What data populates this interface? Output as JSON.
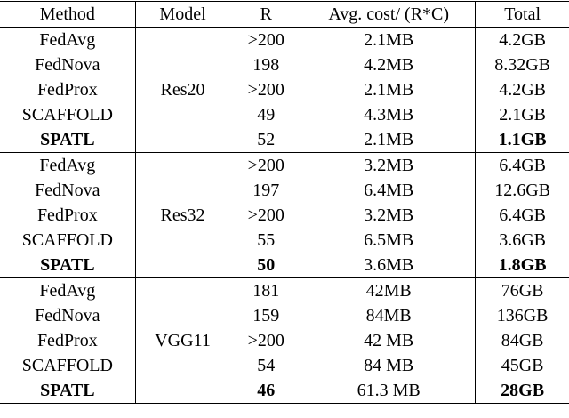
{
  "table": {
    "header": [
      "Method",
      "Model",
      "R",
      "Avg. cost/ (R*C)",
      "Total"
    ],
    "groups": [
      {
        "model": "Res20",
        "rows": [
          [
            "FedAvg",
            ">200",
            "2.1MB",
            "4.2GB"
          ],
          [
            "FedNova",
            "198",
            "4.2MB",
            "8.32GB"
          ],
          [
            "FedProx",
            ">200",
            "2.1MB",
            "4.2GB"
          ],
          [
            "SCAFFOLD",
            "49",
            "4.3MB",
            "2.1GB"
          ],
          [
            "SPATL",
            "52",
            "2.1MB",
            "1.1GB"
          ]
        ]
      },
      {
        "model": "Res32",
        "rows": [
          [
            "FedAvg",
            ">200",
            "3.2MB",
            "6.4GB"
          ],
          [
            "FedNova",
            "197",
            "6.4MB",
            "12.6GB"
          ],
          [
            "FedProx",
            ">200",
            "3.2MB",
            "6.4GB"
          ],
          [
            "SCAFFOLD",
            "55",
            "6.5MB",
            "3.6GB"
          ],
          [
            "SPATL",
            "50",
            "3.6MB",
            "1.8GB"
          ]
        ]
      },
      {
        "model": "VGG11",
        "rows": [
          [
            "FedAvg",
            "181",
            "42MB",
            "76GB"
          ],
          [
            "FedNova",
            "159",
            "84MB",
            "136GB"
          ],
          [
            "FedProx",
            ">200",
            "42 MB",
            "84GB"
          ],
          [
            "SCAFFOLD",
            "54",
            "84 MB",
            "45GB"
          ],
          [
            "SPATL",
            "46",
            "61.3 MB",
            "28GB"
          ]
        ]
      }
    ]
  }
}
